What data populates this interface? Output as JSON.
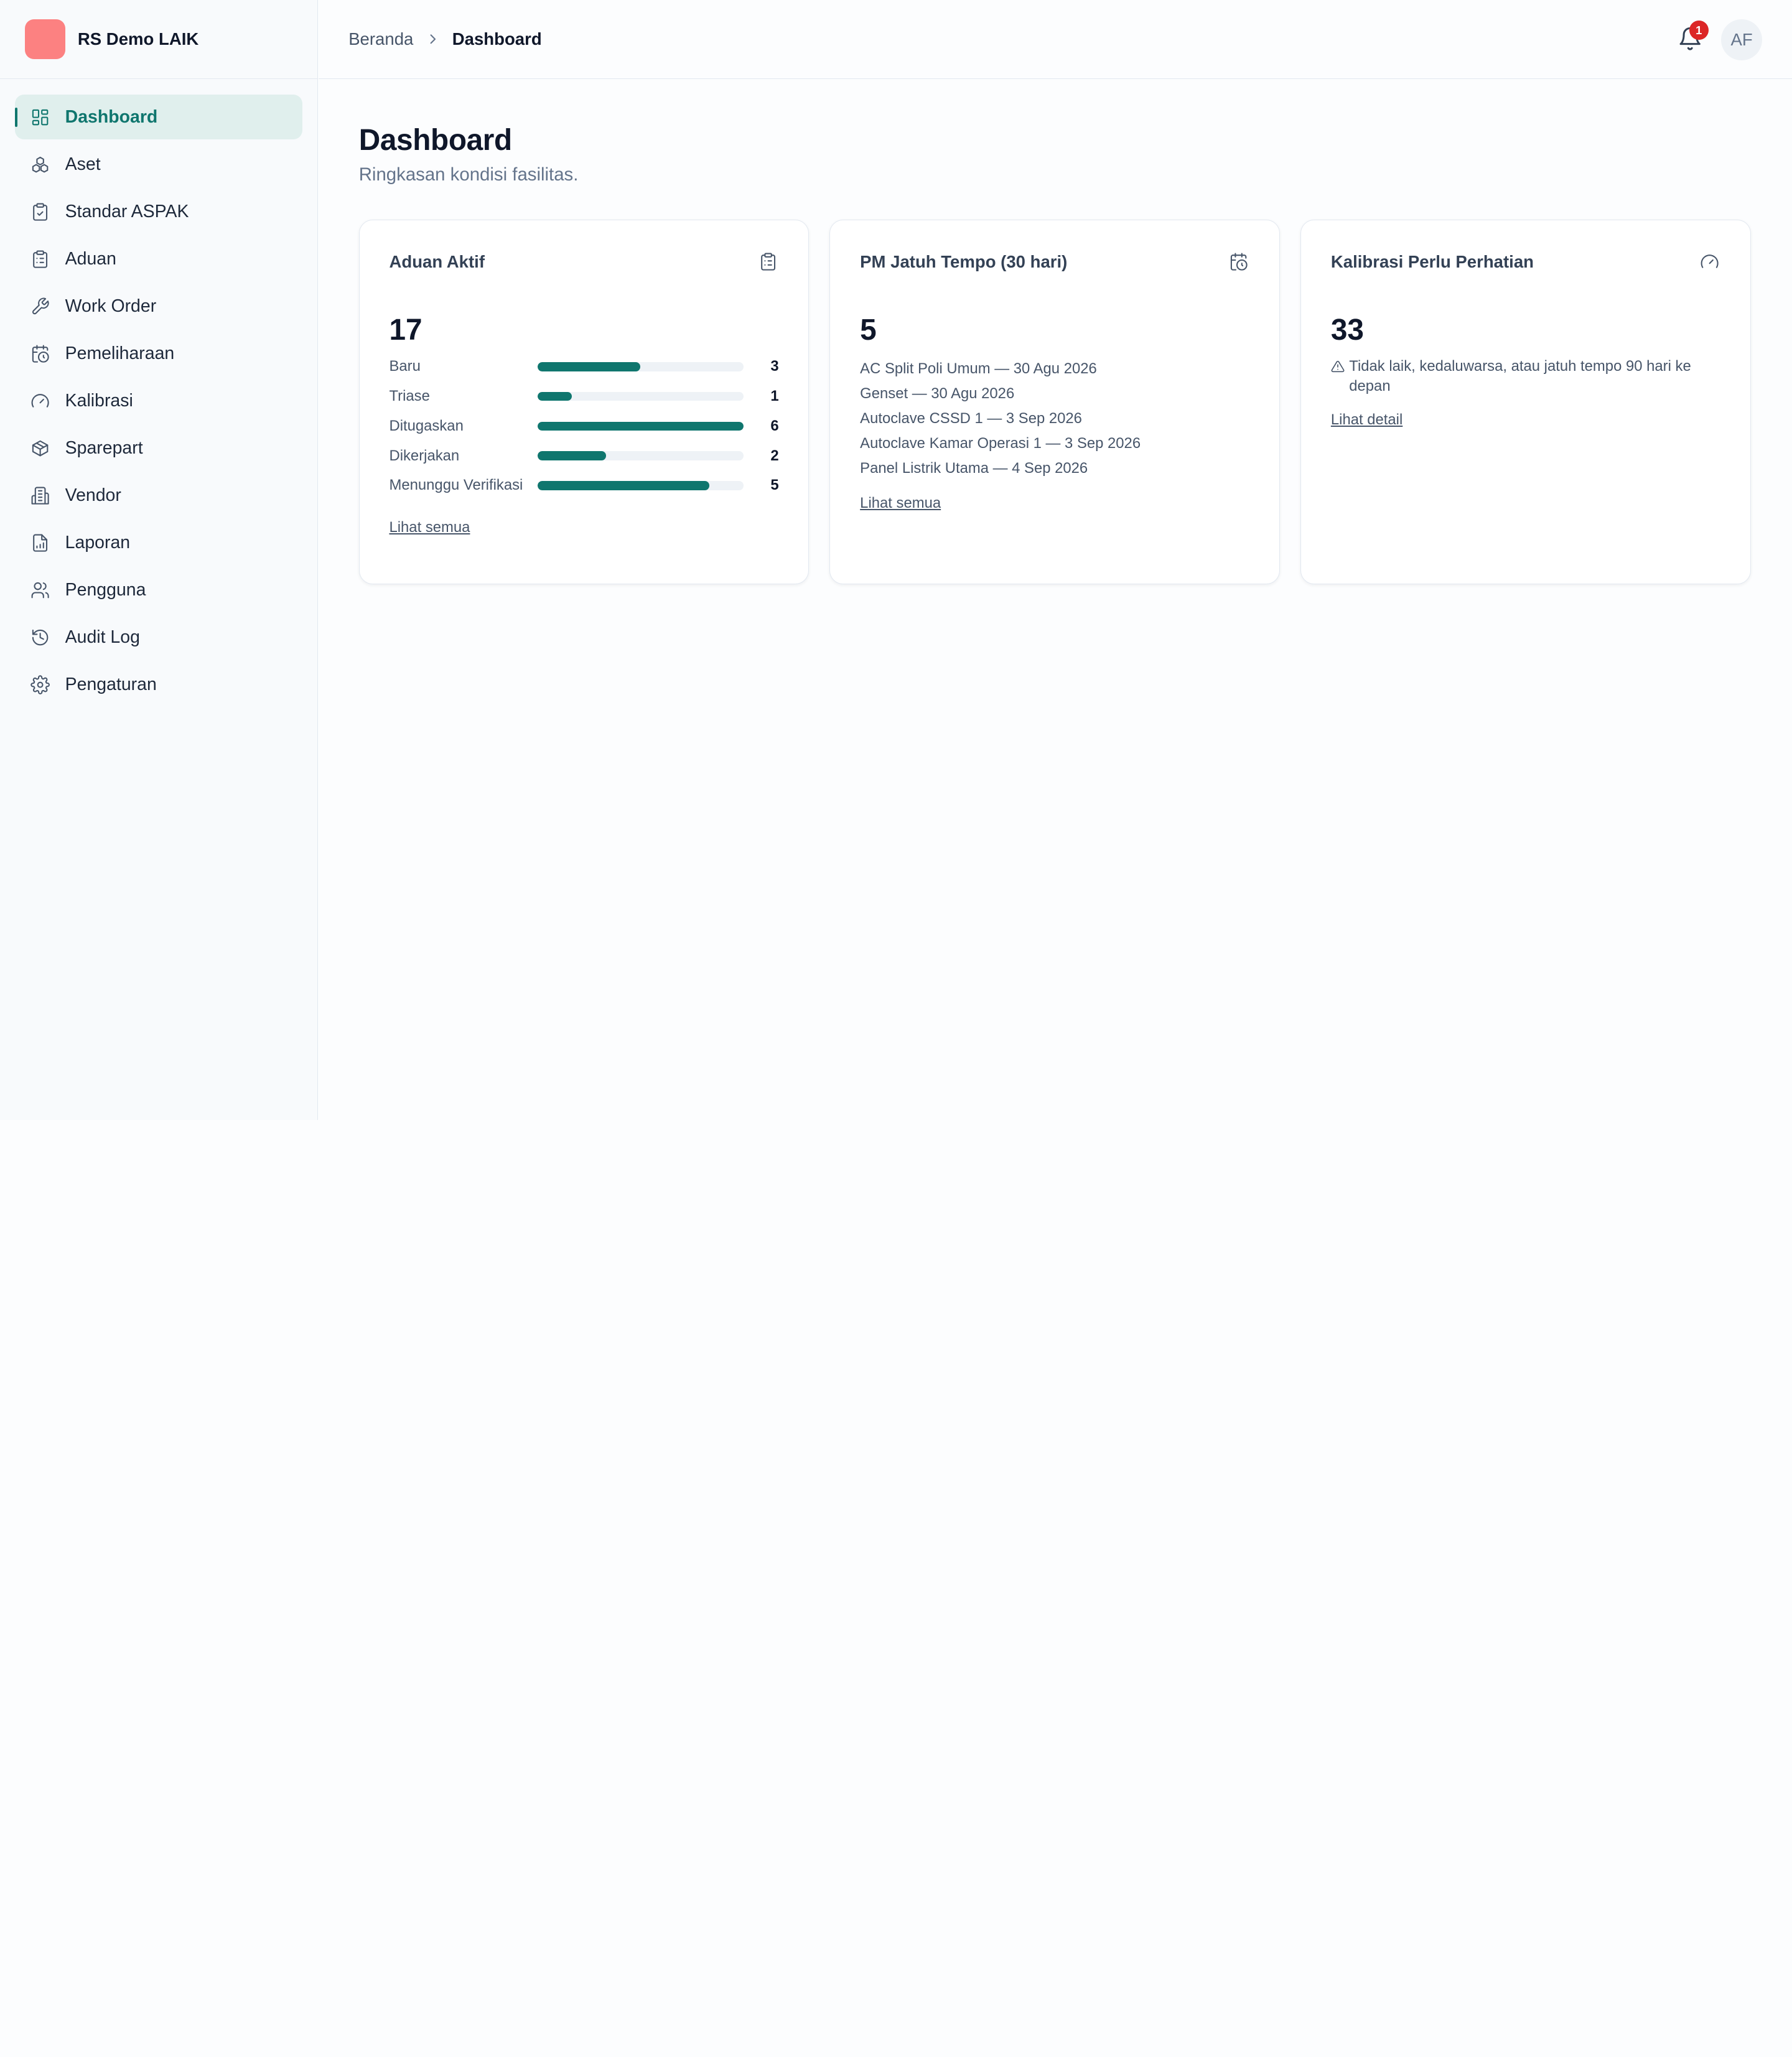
{
  "brand": {
    "name": "RS Demo LAIK",
    "logo_color": "#fc8181"
  },
  "sidebar": {
    "items": [
      {
        "label": "Dashboard",
        "icon": "layout-grid-icon",
        "active": true
      },
      {
        "label": "Aset",
        "icon": "boxes-icon"
      },
      {
        "label": "Standar ASPAK",
        "icon": "clipboard-check-icon"
      },
      {
        "label": "Aduan",
        "icon": "clipboard-list-icon"
      },
      {
        "label": "Work Order",
        "icon": "wrench-icon"
      },
      {
        "label": "Pemeliharaan",
        "icon": "calendar-clock-icon"
      },
      {
        "label": "Kalibrasi",
        "icon": "gauge-icon"
      },
      {
        "label": "Sparepart",
        "icon": "package-icon"
      },
      {
        "label": "Vendor",
        "icon": "building-icon"
      },
      {
        "label": "Laporan",
        "icon": "file-chart-icon"
      },
      {
        "label": "Pengguna",
        "icon": "users-icon"
      },
      {
        "label": "Audit Log",
        "icon": "history-icon"
      },
      {
        "label": "Pengaturan",
        "icon": "gear-icon"
      }
    ]
  },
  "topbar": {
    "breadcrumb": {
      "parent": "Beranda",
      "current": "Dashboard"
    },
    "notifications": {
      "count": "1",
      "icon": "bell-icon"
    },
    "user": {
      "initials": "AF"
    }
  },
  "page": {
    "title": "Dashboard",
    "subtitle": "Ringkasan kondisi fasilitas."
  },
  "cards": {
    "aduan": {
      "title": "Aduan Aktif",
      "icon": "clipboard-list-icon",
      "value": "17",
      "statuses": [
        {
          "label": "Baru",
          "count": 3,
          "fraction": 0.5
        },
        {
          "label": "Triase",
          "count": 1,
          "fraction": 0.1667
        },
        {
          "label": "Ditugaskan",
          "count": 6,
          "fraction": 1.0
        },
        {
          "label": "Dikerjakan",
          "count": 2,
          "fraction": 0.3333
        },
        {
          "label": "Menunggu Verifikasi",
          "count": 5,
          "fraction": 0.8333
        }
      ],
      "link": "Lihat semua"
    },
    "pm": {
      "title": "PM Jatuh Tempo (30 hari)",
      "icon": "calendar-clock-icon",
      "value": "5",
      "items": [
        "AC Split Poli Umum — 30 Agu 2026",
        "Genset — 30 Agu 2026",
        "Autoclave CSSD 1 — 3 Sep 2026",
        "Autoclave Kamar Operasi 1 — 3 Sep 2026",
        "Panel Listrik Utama — 4 Sep 2026"
      ],
      "link": "Lihat semua"
    },
    "kalibrasi": {
      "title": "Kalibrasi Perlu Perhatian",
      "icon": "gauge-icon",
      "value": "33",
      "note": "Tidak laik, kedaluwarsa, atau jatuh tempo 90 hari ke depan",
      "note_icon": "warning-triangle-icon",
      "link": "Lihat detail"
    }
  },
  "colors": {
    "accent": "#0f766e",
    "active_bg": "#e0efed",
    "badge": "#dc2626"
  }
}
